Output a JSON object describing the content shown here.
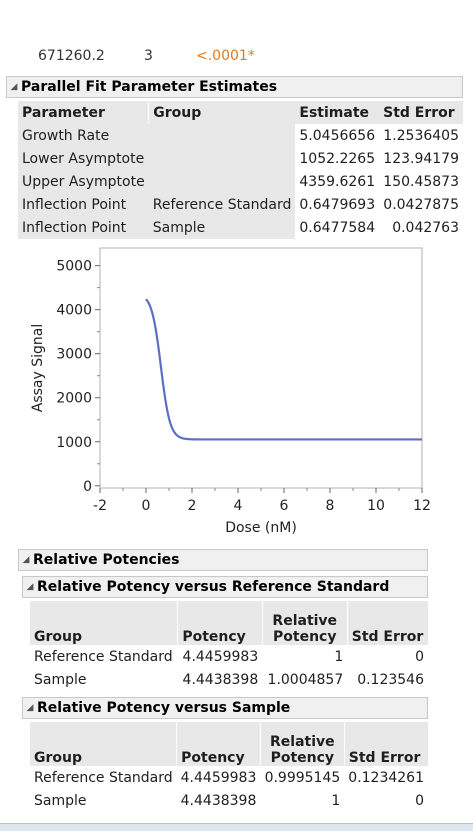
{
  "cut_row": {
    "c1": "671260.2",
    "c2": "3",
    "c3": "<.0001*"
  },
  "parallel_fit": {
    "title": "Parallel Fit Parameter Estimates",
    "headers": [
      "Parameter",
      "Group",
      "Estimate",
      "Std Error"
    ],
    "rows": [
      {
        "parameter": "Growth Rate",
        "group": "",
        "estimate": "5.0456656",
        "stderr": "1.2536405"
      },
      {
        "parameter": "Lower Asymptote",
        "group": "",
        "estimate": "1052.2265",
        "stderr": "123.94179"
      },
      {
        "parameter": "Upper Asymptote",
        "group": "",
        "estimate": "4359.6261",
        "stderr": "150.45873"
      },
      {
        "parameter": "Inflection Point",
        "group": "Reference Standard",
        "estimate": "0.6479693",
        "stderr": "0.0427875"
      },
      {
        "parameter": "Inflection Point",
        "group": "Sample",
        "estimate": "0.6477584",
        "stderr": "0.042763"
      }
    ]
  },
  "chart_data": {
    "type": "line",
    "xlabel": "Dose (nM)",
    "ylabel": "Assay Signal",
    "xlim": [
      -2,
      12
    ],
    "ylim": [
      -50,
      5400
    ],
    "xticks": [
      "-2",
      "0",
      "2",
      "4",
      "6",
      "8",
      "10",
      "12"
    ],
    "yticks": [
      "0",
      "1000",
      "2000",
      "3000",
      "4000",
      "5000"
    ],
    "color": "#5b6fc4",
    "curve": {
      "type": "logistic",
      "lower": 1052.2265,
      "upper": 4359.6261,
      "growth_rate": 5.0456656,
      "inflection": 0.648,
      "x_start": 0,
      "x_end": 12
    }
  },
  "relative_potencies": {
    "title": "Relative Potencies",
    "vs_reference": {
      "title": "Relative Potency versus Reference Standard",
      "headers": [
        "Group",
        "Potency",
        "Relative Potency",
        "Std Error"
      ],
      "rows": [
        {
          "group": "Reference Standard",
          "potency": "4.4459983",
          "relative": "1",
          "stderr": "0"
        },
        {
          "group": "Sample",
          "potency": "4.4438398",
          "relative": "1.0004857",
          "stderr": "0.123546"
        }
      ]
    },
    "vs_sample": {
      "title": "Relative Potency versus Sample",
      "headers": [
        "Group",
        "Potency",
        "Relative Potency",
        "Std Error"
      ],
      "rows": [
        {
          "group": "Reference Standard",
          "potency": "4.4459983",
          "relative": "0.9995145",
          "stderr": "0.1234261"
        },
        {
          "group": "Sample",
          "potency": "4.4438398",
          "relative": "1",
          "stderr": "0"
        }
      ]
    }
  }
}
